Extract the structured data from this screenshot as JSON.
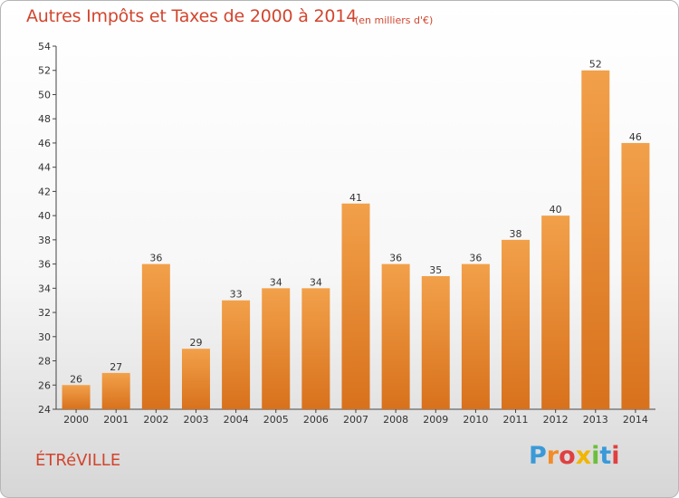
{
  "chart_data": {
    "type": "bar",
    "title": "Autres Impôts et Taxes de 2000 à 2014",
    "subtitle": "(en milliers d'€)",
    "categories": [
      "2000",
      "2001",
      "2002",
      "2003",
      "2004",
      "2005",
      "2006",
      "2007",
      "2008",
      "2009",
      "2010",
      "2011",
      "2012",
      "2013",
      "2014"
    ],
    "values": [
      26,
      27,
      36,
      29,
      33,
      34,
      34,
      41,
      36,
      35,
      36,
      38,
      40,
      52,
      46
    ],
    "ylim": [
      24,
      54
    ],
    "yticks": [
      24,
      26,
      28,
      30,
      32,
      34,
      36,
      38,
      40,
      42,
      44,
      46,
      48,
      50,
      52,
      54
    ],
    "grid": false,
    "bar_color": "#f2a04a",
    "bar_color_dark": "#d8711c"
  },
  "commune": "ÉTRéVILLE",
  "logo": {
    "letters": [
      "P",
      "r",
      "o",
      "x",
      "i",
      "t",
      "i"
    ],
    "colors": [
      "#3a9ad9",
      "#f28c28",
      "#e04040",
      "#f2b500",
      "#6cbf3a",
      "#3a9ad9",
      "#e04040"
    ]
  },
  "colors": {
    "title": "#d2452e",
    "axis": "#333333"
  }
}
